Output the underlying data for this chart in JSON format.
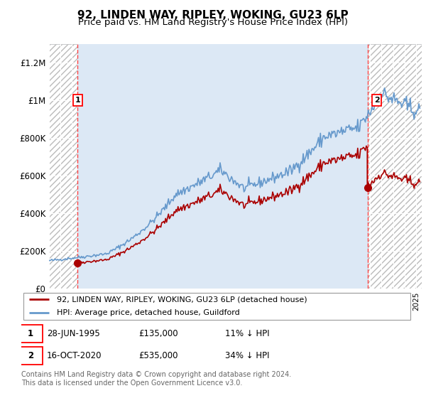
{
  "title": "92, LINDEN WAY, RIPLEY, WOKING, GU23 6LP",
  "subtitle": "Price paid vs. HM Land Registry's House Price Index (HPI)",
  "ylim": [
    0,
    1300000
  ],
  "yticks": [
    0,
    200000,
    400000,
    600000,
    800000,
    1000000,
    1200000
  ],
  "ytick_labels": [
    "£0",
    "£200K",
    "£400K",
    "£600K",
    "£800K",
    "£1M",
    "£1.2M"
  ],
  "xlim_start": 1993.0,
  "xlim_end": 2025.5,
  "sale1_year": 1995.49,
  "sale1_price": 135000,
  "sale2_year": 2020.79,
  "sale2_price": 535000,
  "hpi_line_color": "#6699cc",
  "price_line_color": "#aa0000",
  "dashed_vline_color": "#ff4444",
  "bg_plot_color": "#dce8f5",
  "legend_line1": "92, LINDEN WAY, RIPLEY, WOKING, GU23 6LP (detached house)",
  "legend_line2": "HPI: Average price, detached house, Guildford",
  "annotation1_date": "28-JUN-1995",
  "annotation1_price": "£135,000",
  "annotation1_hpi": "11% ↓ HPI",
  "annotation2_date": "16-OCT-2020",
  "annotation2_price": "£535,000",
  "annotation2_hpi": "34% ↓ HPI",
  "footer": "Contains HM Land Registry data © Crown copyright and database right 2024.\nThis data is licensed under the Open Government Licence v3.0.",
  "grid_color": "#ffffff",
  "title_fontsize": 11,
  "subtitle_fontsize": 9.5
}
